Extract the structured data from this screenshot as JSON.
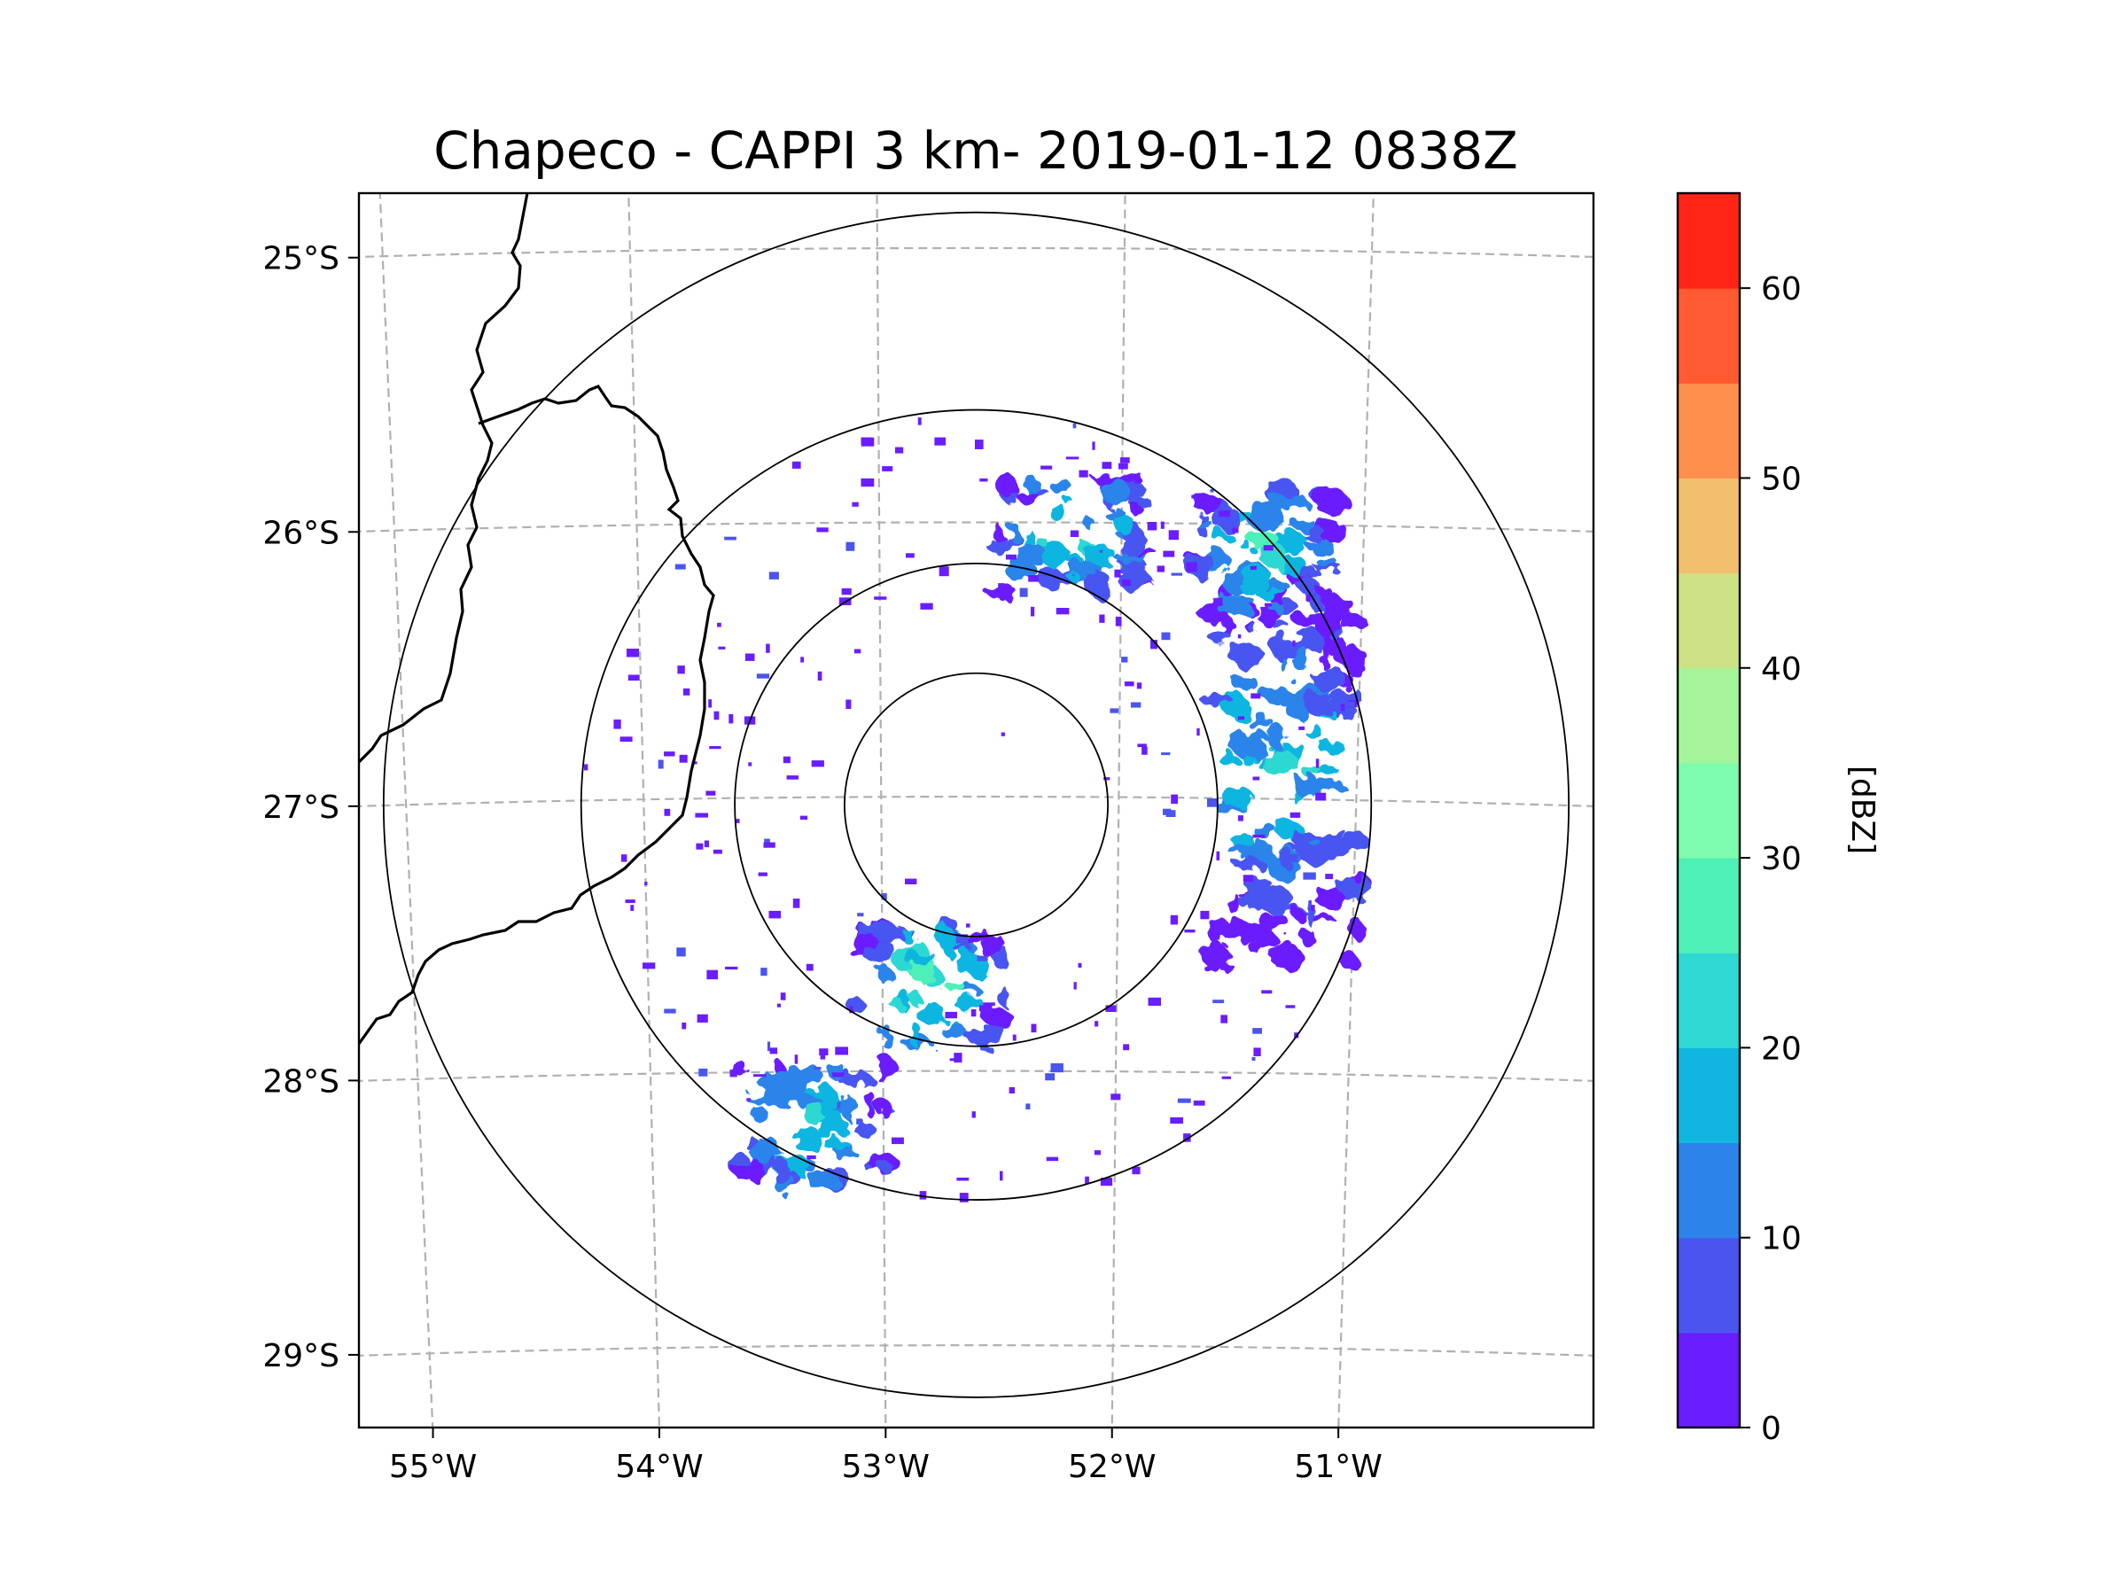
{
  "title": "Chapeco - CAPPI 3 km- 2019-01-12 0838Z",
  "map": {
    "type": "radar_map",
    "projection": "lat-lon (slightly curved graticule)",
    "lon_range": [
      -55.2,
      -50.0
    ],
    "lat_range": [
      -29.3,
      -24.8
    ],
    "radar_center": {
      "lon": -52.6,
      "lat": -27.03
    },
    "range_rings_deg_lat": [
      0.48,
      0.88,
      1.44,
      2.16
    ],
    "lon_ticks": [
      {
        "value": -55,
        "label": "55°W"
      },
      {
        "value": -54,
        "label": "54°W"
      },
      {
        "value": -53,
        "label": "53°W"
      },
      {
        "value": -52,
        "label": "52°W"
      },
      {
        "value": -51,
        "label": "51°W"
      }
    ],
    "lat_ticks": [
      {
        "value": -25,
        "label": "25°S"
      },
      {
        "value": -26,
        "label": "26°S"
      },
      {
        "value": -27,
        "label": "27°S"
      },
      {
        "value": -28,
        "label": "28°S"
      },
      {
        "value": -29,
        "label": "29°S"
      }
    ],
    "gridlines": "dashed",
    "features": [
      "country borders (Argentina / Brazil)"
    ],
    "echo_regions": [
      {
        "name": "east-sector-band",
        "lon": -51.3,
        "lat": -26.9,
        "intensity_dbz": [
          0,
          20
        ]
      },
      {
        "name": "north-cluster",
        "lon": -52.2,
        "lat": -26.05,
        "intensity_dbz": [
          0,
          25
        ]
      },
      {
        "name": "northeast-cluster",
        "lon": -51.4,
        "lat": -26.1,
        "intensity_dbz": [
          0,
          25
        ]
      },
      {
        "name": "south-central-cell",
        "lon": -52.8,
        "lat": -27.7,
        "intensity_dbz": [
          0,
          30
        ]
      },
      {
        "name": "southwest-cluster",
        "lon": -53.3,
        "lat": -28.2,
        "intensity_dbz": [
          0,
          25
        ]
      }
    ]
  },
  "colorbar": {
    "label": "[dBZ]",
    "min": 0,
    "max": 65,
    "step": 5,
    "ticks": [
      {
        "value": 0,
        "label": "0"
      },
      {
        "value": 10,
        "label": "10"
      },
      {
        "value": 20,
        "label": "20"
      },
      {
        "value": 30,
        "label": "30"
      },
      {
        "value": 40,
        "label": "40"
      },
      {
        "value": 50,
        "label": "50"
      },
      {
        "value": 60,
        "label": "60"
      }
    ],
    "colors": [
      "#6a1dff",
      "#4a55f0",
      "#2c84ea",
      "#10b6e0",
      "#2fd8d2",
      "#4ef0b8",
      "#7cfcac",
      "#a4f59a",
      "#cde284",
      "#f2bf6e",
      "#ff8f4d",
      "#ff5a31",
      "#ff2415"
    ]
  }
}
